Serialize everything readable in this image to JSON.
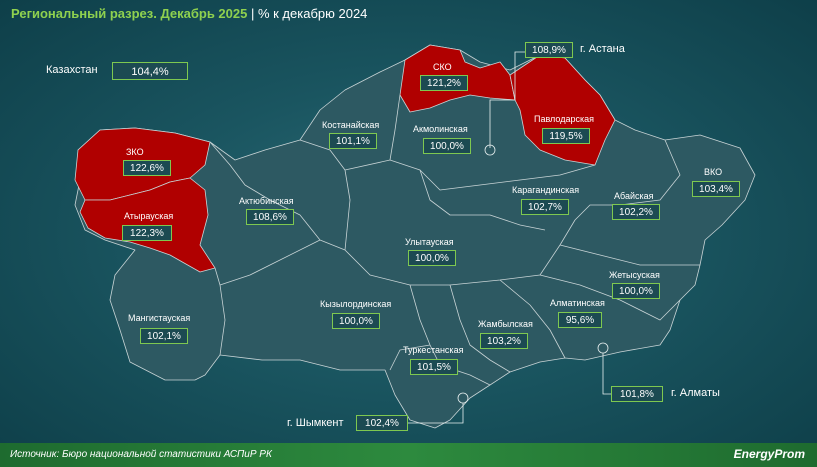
{
  "title": {
    "main": "Региональный разрез. Декабрь 2025",
    "suffix": "| % к декабрю 2024"
  },
  "national": {
    "label": "Казахстан",
    "value": "104,4%"
  },
  "regions": {
    "zko": {
      "label": "ЗКО",
      "value": "122,6%",
      "fill": "#b00000"
    },
    "atyrau": {
      "label": "Атырауская",
      "value": "122,3%",
      "fill": "#b00000"
    },
    "mangistau": {
      "label": "Мангистауская",
      "value": "102,1%"
    },
    "aktobe": {
      "label": "Актюбинская",
      "value": "108,6%"
    },
    "kostanay": {
      "label": "Костанайская",
      "value": "101,1%"
    },
    "sko": {
      "label": "СКО",
      "value": "121,2%",
      "fill": "#b00000"
    },
    "akmola": {
      "label": "Акмолинская",
      "value": "100,0%"
    },
    "pavlodar": {
      "label": "Павлодарская",
      "value": "119,5%",
      "fill": "#b00000"
    },
    "karaganda": {
      "label": "Карагандинская",
      "value": "102,7%"
    },
    "vko": {
      "label": "ВКО",
      "value": "103,4%"
    },
    "abay": {
      "label": "Абайская",
      "value": "102,2%"
    },
    "ulytau": {
      "label": "Улытауская",
      "value": "100,0%"
    },
    "kyzylorda": {
      "label": "Кызылординская",
      "value": "100,0%"
    },
    "zhetysu": {
      "label": "Жетысуская",
      "value": "100,0%"
    },
    "almaty_obl": {
      "label": "Алматинская",
      "value": "95,6%"
    },
    "zhambyl": {
      "label": "Жамбылская",
      "value": "103,2%"
    },
    "turkestan": {
      "label": "Туркестанская",
      "value": "101,5%"
    }
  },
  "cities": {
    "astana": {
      "label": "г. Астана",
      "value": "108,9%"
    },
    "almaty": {
      "label": "г. Алматы",
      "value": "101,8%"
    },
    "shymkent": {
      "label": "г. Шымкент",
      "value": "102,4%"
    }
  },
  "colors": {
    "region_fill": "#2d5962",
    "highlight_fill": "#b00000",
    "border": "#c8d4d6",
    "accent": "#7ec850"
  },
  "footer": {
    "source": "Источник: Бюро национальной статистики АСПиР РК",
    "logo": "EnergyProm"
  }
}
